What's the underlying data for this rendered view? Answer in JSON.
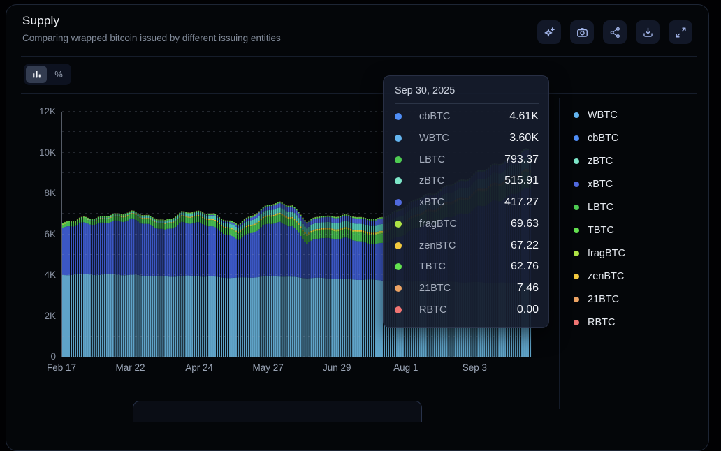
{
  "header": {
    "title": "Supply",
    "subtitle": "Comparing wrapped bitcoin issued by different issuing entities"
  },
  "toolbar": {
    "buttons": [
      "ai-assistant",
      "screenshot",
      "share",
      "download",
      "fullscreen"
    ]
  },
  "view_toggle": {
    "bars_selected": true,
    "percent_label": "%"
  },
  "tooltip": {
    "date": "Sep 30, 2025",
    "rows": [
      {
        "label": "cbBTC",
        "value": "4.61K",
        "color": "#4f8ef7"
      },
      {
        "label": "WBTC",
        "value": "3.60K",
        "color": "#64b5f0"
      },
      {
        "label": "LBTC",
        "value": "793.37",
        "color": "#4ecb52"
      },
      {
        "label": "zBTC",
        "value": "515.91",
        "color": "#7de6c8"
      },
      {
        "label": "xBTC",
        "value": "417.27",
        "color": "#5069de"
      },
      {
        "label": "fragBTC",
        "value": "69.63",
        "color": "#aee345"
      },
      {
        "label": "zenBTC",
        "value": "67.22",
        "color": "#f3c93e"
      },
      {
        "label": "TBTC",
        "value": "62.76",
        "color": "#63e14f"
      },
      {
        "label": "21BTC",
        "value": "7.46",
        "color": "#eda464"
      },
      {
        "label": "RBTC",
        "value": "0.00",
        "color": "#ef7472"
      }
    ]
  },
  "legend": {
    "items": [
      {
        "label": "WBTC",
        "color": "#64b5f0"
      },
      {
        "label": "cbBTC",
        "color": "#4f8ef7"
      },
      {
        "label": "zBTC",
        "color": "#7de6c8"
      },
      {
        "label": "xBTC",
        "color": "#5069de"
      },
      {
        "label": "LBTC",
        "color": "#4ecb52"
      },
      {
        "label": "TBTC",
        "color": "#63e14f"
      },
      {
        "label": "fragBTC",
        "color": "#aee345"
      },
      {
        "label": "zenBTC",
        "color": "#f3c93e"
      },
      {
        "label": "21BTC",
        "color": "#eda464"
      },
      {
        "label": "RBTC",
        "color": "#ef7472"
      }
    ]
  },
  "chart_data": {
    "type": "bar",
    "stacked": true,
    "title": "Supply",
    "xlabel": "",
    "ylabel": "",
    "ylim": [
      0,
      12000
    ],
    "grid": "dashed-horizontal-every-1K",
    "legend_position": "right",
    "y_ticks": [
      {
        "value_k": 0,
        "label": "0"
      },
      {
        "value_k": 2,
        "label": "2K"
      },
      {
        "value_k": 4,
        "label": "4K"
      },
      {
        "value_k": 6,
        "label": "6K"
      },
      {
        "value_k": 8,
        "label": "8K"
      },
      {
        "value_k": 10,
        "label": "10K"
      },
      {
        "value_k": 12,
        "label": "12K"
      }
    ],
    "x_ticks": [
      {
        "day": 0,
        "label": "Feb 17"
      },
      {
        "day": 33,
        "label": "Mar 22"
      },
      {
        "day": 66,
        "label": "Apr 24"
      },
      {
        "day": 99,
        "label": "May 27"
      },
      {
        "day": 132,
        "label": "Jun 29"
      },
      {
        "day": 165,
        "label": "Aug 1"
      },
      {
        "day": 198,
        "label": "Sep 3"
      }
    ],
    "total_days": 225,
    "hovered_point": {
      "date": "Sep 30, 2025",
      "values_btc": {
        "cbBTC": 4610,
        "WBTC": 3600,
        "LBTC": 793.37,
        "zBTC": 515.91,
        "xBTC": 417.27,
        "fragBTC": 69.63,
        "zenBTC": 67.22,
        "TBTC": 62.76,
        "21BTC": 7.46,
        "RBTC": 0.0
      }
    },
    "keyframe_days": [
      0,
      8,
      16,
      24,
      33,
      41,
      49,
      57,
      66,
      74,
      84,
      92,
      99,
      104,
      110,
      117,
      124,
      132,
      140,
      150,
      160,
      170,
      180,
      190,
      200,
      210,
      218,
      225
    ],
    "series": [
      {
        "name": "WBTC",
        "bar_color": "#5fa3c8",
        "values_k": [
          4.0,
          4.05,
          4.02,
          4.03,
          4.0,
          3.96,
          3.92,
          3.96,
          3.95,
          3.9,
          3.86,
          3.9,
          3.95,
          3.95,
          3.9,
          3.86,
          3.85,
          3.82,
          3.79,
          3.76,
          3.73,
          3.7,
          3.68,
          3.66,
          3.64,
          3.62,
          3.61,
          3.6
        ]
      },
      {
        "name": "cbBTC",
        "bar_color": "#3b57c4",
        "values_k": [
          2.28,
          2.5,
          2.45,
          2.62,
          2.68,
          2.55,
          2.22,
          2.62,
          2.58,
          2.36,
          1.85,
          2.3,
          2.55,
          2.62,
          2.5,
          1.7,
          2.0,
          1.95,
          1.95,
          1.7,
          2.1,
          2.62,
          2.95,
          3.3,
          3.7,
          4.1,
          4.45,
          4.61
        ]
      },
      {
        "name": "LBTC",
        "bar_color": "#45b84e",
        "values_k": [
          0.15,
          0.17,
          0.19,
          0.21,
          0.24,
          0.26,
          0.27,
          0.29,
          0.3,
          0.31,
          0.33,
          0.34,
          0.35,
          0.36,
          0.37,
          0.38,
          0.39,
          0.4,
          0.42,
          0.45,
          0.5,
          0.55,
          0.6,
          0.65,
          0.7,
          0.74,
          0.77,
          0.79
        ]
      },
      {
        "name": "fragBTC",
        "bar_color": "#a2d43e",
        "values_k": [
          0,
          0,
          0,
          0,
          0,
          0,
          0,
          0,
          0.01,
          0.01,
          0.02,
          0.02,
          0.02,
          0.03,
          0.03,
          0.04,
          0.04,
          0.05,
          0.05,
          0.06,
          0.06,
          0.06,
          0.06,
          0.07,
          0.07,
          0.07,
          0.07,
          0.07
        ]
      },
      {
        "name": "zenBTC",
        "bar_color": "#e4c23a",
        "values_k": [
          0.02,
          0.02,
          0.02,
          0.03,
          0.03,
          0.03,
          0.03,
          0.04,
          0.04,
          0.04,
          0.04,
          0.05,
          0.05,
          0.05,
          0.05,
          0.05,
          0.05,
          0.05,
          0.06,
          0.06,
          0.06,
          0.06,
          0.06,
          0.07,
          0.07,
          0.07,
          0.07,
          0.07
        ]
      },
      {
        "name": "zBTC",
        "bar_color": "#52c4b4",
        "values_k": [
          0.0,
          0.01,
          0.03,
          0.04,
          0.05,
          0.08,
          0.1,
          0.13,
          0.15,
          0.18,
          0.2,
          0.23,
          0.25,
          0.26,
          0.27,
          0.28,
          0.29,
          0.3,
          0.31,
          0.33,
          0.35,
          0.38,
          0.41,
          0.44,
          0.47,
          0.49,
          0.51,
          0.52
        ]
      },
      {
        "name": "xBTC",
        "bar_color": "#4a63d4",
        "values_k": [
          0,
          0,
          0,
          0,
          0,
          0,
          0,
          0,
          0,
          0.05,
          0.1,
          0.15,
          0.2,
          0.22,
          0.23,
          0.24,
          0.24,
          0.25,
          0.26,
          0.27,
          0.29,
          0.31,
          0.33,
          0.35,
          0.37,
          0.39,
          0.41,
          0.42
        ]
      },
      {
        "name": "TBTC",
        "bar_color": "#58d04e",
        "values_k": [
          0.06,
          0.06,
          0.06,
          0.06,
          0.06,
          0.06,
          0.06,
          0.06,
          0.06,
          0.06,
          0.06,
          0.06,
          0.06,
          0.06,
          0.06,
          0.06,
          0.06,
          0.06,
          0.06,
          0.06,
          0.06,
          0.06,
          0.06,
          0.06,
          0.06,
          0.06,
          0.06,
          0.06
        ]
      },
      {
        "name": "21BTC",
        "bar_color": "#e09a5e",
        "values_k": [
          0.01,
          0.01,
          0.01,
          0.01,
          0.01,
          0.01,
          0.01,
          0.01,
          0.01,
          0.01,
          0.01,
          0.01,
          0.01,
          0.01,
          0.01,
          0.01,
          0.01,
          0.01,
          0.01,
          0.01,
          0.01,
          0.01,
          0.01,
          0.01,
          0.01,
          0.01,
          0.01,
          0.01
        ]
      },
      {
        "name": "RBTC",
        "bar_color": "#e06f6f",
        "values_k": [
          0,
          0,
          0,
          0,
          0,
          0,
          0,
          0,
          0,
          0,
          0,
          0,
          0,
          0,
          0,
          0,
          0,
          0,
          0,
          0,
          0,
          0,
          0,
          0,
          0,
          0,
          0,
          0
        ]
      }
    ]
  }
}
